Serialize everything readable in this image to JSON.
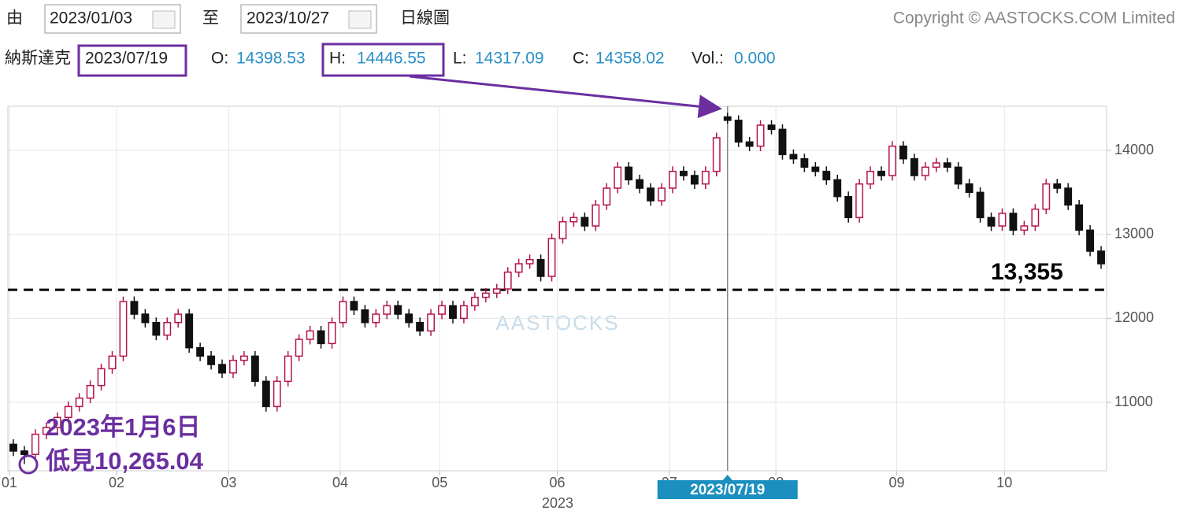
{
  "header": {
    "from_label": "由",
    "from": "2023/01/03",
    "to_label": "至",
    "to": "2023/10/27",
    "chart_kind": "日線圖",
    "copyright": "Copyright © AASTOCKS.COM Limited",
    "name": "納斯達克",
    "date": "2023/07/19",
    "o_label": "O:",
    "o": "14398.53",
    "h_label": "H:",
    "h": "14446.55",
    "l_label": "L:",
    "l": "14317.09",
    "c_label": "C:",
    "c": "14358.02",
    "vol_label": "Vol.:",
    "vol": "0.000"
  },
  "chart_data": {
    "type": "candlestick",
    "open": [
      10500,
      10420,
      10380,
      10620,
      10700,
      10820,
      10950,
      11050,
      11200,
      11400,
      11550,
      12200,
      12050,
      11950,
      11800,
      11950,
      12050,
      11650,
      11550,
      11450,
      11350,
      11500,
      11550,
      11250,
      10950,
      11250,
      11550,
      11750,
      11850,
      11700,
      11950,
      12200,
      12100,
      11950,
      12050,
      12150,
      12050,
      11950,
      11850,
      12050,
      12150,
      12000,
      12150,
      12250,
      12300,
      12350,
      12550,
      12650,
      12700,
      12500,
      12950,
      13150,
      13200,
      13100,
      13350,
      13550,
      13800,
      13650,
      13550,
      13400,
      13550,
      13750,
      13700,
      13600,
      13750,
      14398.53,
      14358.02,
      14100,
      14050,
      14300,
      14250,
      13950,
      13900,
      13800,
      13750,
      13650,
      13450,
      13200,
      13600,
      13750,
      13700,
      14050,
      13900,
      13700,
      13800,
      13850,
      13800,
      13600,
      13500,
      13200,
      13100,
      13250,
      13050,
      13100,
      13300,
      13600,
      13550,
      13350,
      13050,
      12800
    ],
    "high": [
      10560,
      10480,
      10680,
      10760,
      10880,
      11010,
      11110,
      11260,
      11460,
      11610,
      12260,
      12260,
      12110,
      12010,
      12010,
      12110,
      12110,
      11710,
      11610,
      11510,
      11560,
      11610,
      11610,
      11310,
      11310,
      11610,
      11810,
      11910,
      11910,
      12010,
      12260,
      12260,
      12160,
      12110,
      12210,
      12210,
      12110,
      12010,
      12110,
      12210,
      12210,
      12210,
      12310,
      12360,
      12410,
      12610,
      12710,
      12760,
      12760,
      13010,
      13210,
      13260,
      13260,
      13410,
      13610,
      13860,
      13860,
      13710,
      13610,
      13610,
      13810,
      13810,
      13760,
      13810,
      14210,
      14446.55,
      14418,
      14160,
      14360,
      14360,
      14310,
      14010,
      13960,
      13860,
      13810,
      13710,
      13510,
      13660,
      13810,
      13810,
      14110,
      14110,
      13960,
      13860,
      13910,
      13910,
      13860,
      13660,
      13560,
      13260,
      13310,
      13310,
      13160,
      13360,
      13660,
      13660,
      13610,
      13410,
      13110,
      12860
    ],
    "low": [
      10360,
      10265.04,
      10320,
      10560,
      10640,
      10760,
      10890,
      10990,
      11140,
      11340,
      11490,
      11990,
      11890,
      11740,
      11740,
      11890,
      11590,
      11490,
      11390,
      11290,
      11290,
      11440,
      11190,
      10890,
      10890,
      11190,
      11490,
      11690,
      11640,
      11640,
      11890,
      12040,
      11890,
      11890,
      11990,
      11990,
      11890,
      11790,
      11790,
      11990,
      11940,
      11940,
      12090,
      12190,
      12240,
      12290,
      12490,
      12590,
      12440,
      12440,
      12890,
      13090,
      13040,
      13040,
      13290,
      13490,
      13590,
      13490,
      13340,
      13340,
      13490,
      13640,
      13540,
      13540,
      13690,
      14317.09,
      14040,
      13990,
      13990,
      14190,
      13890,
      13840,
      13740,
      13690,
      13590,
      13390,
      13140,
      13140,
      13540,
      13640,
      13640,
      13840,
      13640,
      13640,
      13740,
      13740,
      13540,
      13440,
      13140,
      13040,
      13040,
      12990,
      12990,
      13040,
      13240,
      13490,
      13290,
      12990,
      12740,
      12590
    ],
    "close": [
      10420,
      10380,
      10620,
      10700,
      10820,
      10950,
      11050,
      11200,
      11400,
      11550,
      12200,
      12050,
      11950,
      11800,
      11950,
      12050,
      11650,
      11550,
      11450,
      11350,
      11500,
      11550,
      11250,
      10950,
      11250,
      11550,
      11750,
      11850,
      11700,
      11950,
      12200,
      12100,
      11950,
      12050,
      12150,
      12050,
      11950,
      11850,
      12050,
      12150,
      12000,
      12150,
      12250,
      12300,
      12350,
      12550,
      12650,
      12700,
      12500,
      12950,
      13150,
      13200,
      13100,
      13350,
      13550,
      13800,
      13650,
      13550,
      13400,
      13550,
      13750,
      13700,
      13600,
      13750,
      14150,
      14358.02,
      14100,
      14050,
      14300,
      14250,
      13950,
      13900,
      13800,
      13750,
      13650,
      13450,
      13200,
      13600,
      13750,
      13700,
      14050,
      13900,
      13700,
      13800,
      13850,
      13800,
      13600,
      13500,
      13200,
      13100,
      13250,
      13050,
      13100,
      13300,
      13600,
      13550,
      13350,
      13050,
      12800,
      12650
    ],
    "xlim": [
      -0.5,
      99.5
    ],
    "xticks": [
      {
        "value": -0.36,
        "label": "01"
      },
      {
        "value": 9.39,
        "label": "02"
      },
      {
        "value": 19.6,
        "label": "03"
      },
      {
        "value": 29.75,
        "label": "04"
      },
      {
        "value": 38.8,
        "label": "05"
      },
      {
        "value": 49.5,
        "label": "06"
      },
      {
        "value": 59.7,
        "label": "07"
      },
      {
        "value": 69.4,
        "label": "08"
      },
      {
        "value": 80.4,
        "label": "09"
      },
      {
        "value": 90.2,
        "label": "10"
      }
    ],
    "x_label": "2023",
    "ylim": [
      10185,
      14525
    ],
    "yticks": [
      11000,
      12000,
      13000,
      14000
    ],
    "grid": true,
    "up_color": "#b5154b",
    "down_color": "#111111",
    "crosshair": {
      "index": 65,
      "label": "2023/07/19"
    },
    "reference_line": 12340,
    "annotations": [
      "2023年1月6日",
      "低見10,265.04",
      "13,355"
    ],
    "watermark": "AASTOCKS"
  }
}
